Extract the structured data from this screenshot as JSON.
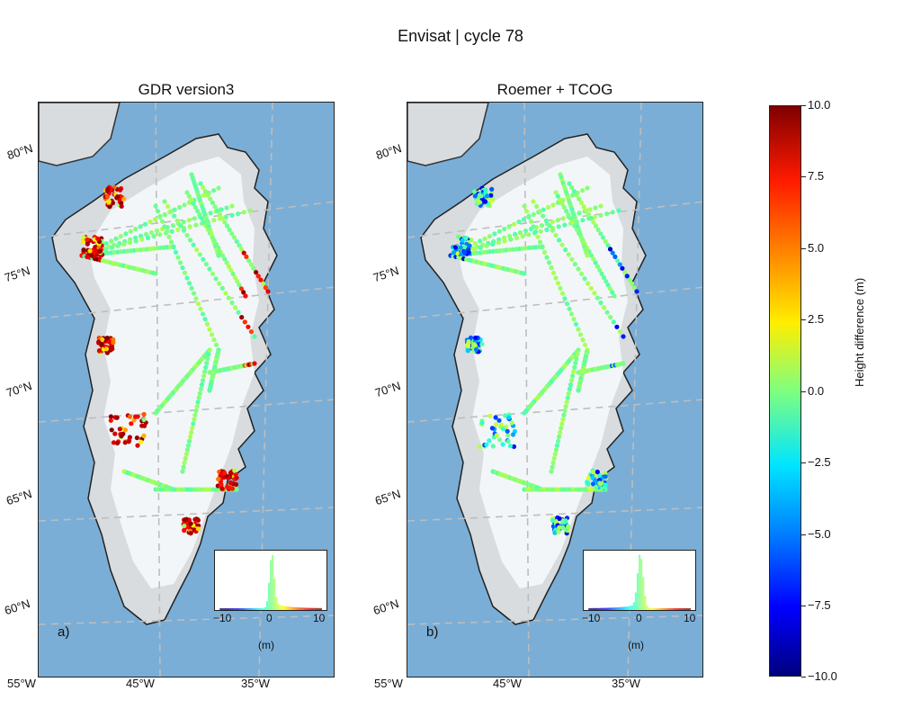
{
  "suptitle": "Envisat | cycle 78",
  "panels": [
    {
      "title": "GDR version3",
      "letter": "a)"
    },
    {
      "title": "Roemer + TCOG",
      "letter": "b)"
    }
  ],
  "lat_labels": [
    "80°N",
    "75°N",
    "70°N",
    "65°N",
    "60°N"
  ],
  "lon_labels": [
    "55°W",
    "45°W",
    "35°W"
  ],
  "inset": {
    "ticks": [
      "−10",
      "0",
      "10"
    ],
    "unit": "(m)"
  },
  "colorbar": {
    "label": "Height difference (m)",
    "ticks": [
      "10.0",
      "7.5",
      "5.0",
      "2.5",
      "0.0",
      "−2.5",
      "−5.0",
      "−7.5",
      "−10.0"
    ],
    "range": [
      -10,
      10
    ],
    "colormap": "jet"
  },
  "colors": {
    "ocean": "#7aaed6",
    "land": "#d8dcdf",
    "ice": "#f3f6f8",
    "track": "#7dfa86",
    "grid": "#bdbdbd"
  }
}
